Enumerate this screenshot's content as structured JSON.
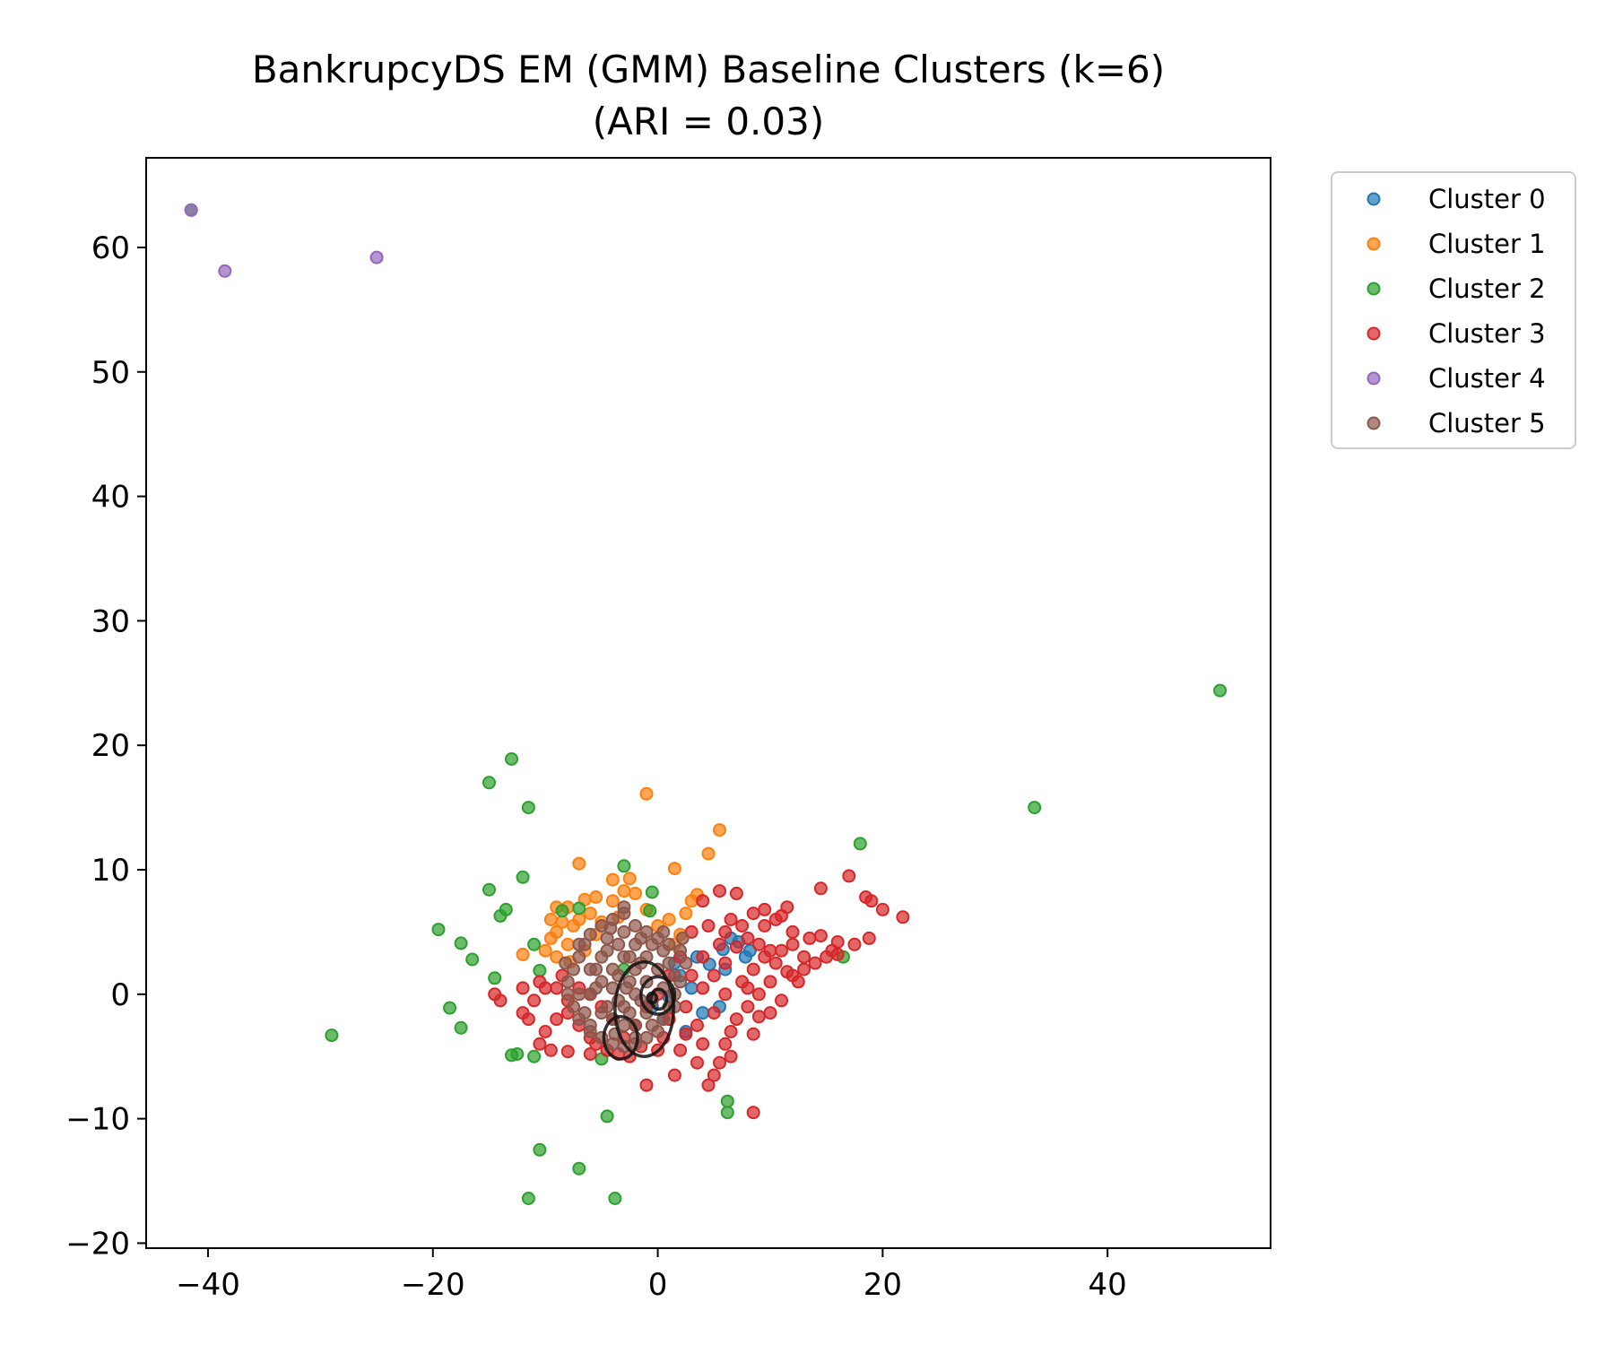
{
  "chart_data": {
    "type": "scatter",
    "title": "BankrupcyDS EM (GMM) Baseline Clusters (k=6)",
    "subtitle": "(ARI = 0.03)",
    "xlabel": "",
    "ylabel": "",
    "xlim": [
      -45.5,
      54.5
    ],
    "ylim": [
      -20.4,
      67.2
    ],
    "xticks": [
      -40,
      -20,
      0,
      20,
      40
    ],
    "yticks": [
      -20,
      -10,
      0,
      10,
      20,
      30,
      40,
      50,
      60
    ],
    "xtick_labels": [
      "−40",
      "−20",
      "0",
      "20",
      "40"
    ],
    "ytick_labels": [
      "−20",
      "−10",
      "0",
      "10",
      "20",
      "30",
      "40",
      "50",
      "60"
    ],
    "grid": false,
    "legend_position": "outside-upper-right",
    "series": [
      {
        "name": "Cluster 0",
        "color": "#1f77b4",
        "points": [
          [
            6.5,
            4.5
          ],
          [
            7.2,
            4.2
          ],
          [
            5.8,
            3.6
          ],
          [
            7.8,
            3.0
          ],
          [
            4.6,
            2.4
          ],
          [
            2.0,
            1.5
          ],
          [
            1.0,
            -0.2
          ],
          [
            3.0,
            0.5
          ],
          [
            6.0,
            2.0
          ],
          [
            4.0,
            -1.5
          ],
          [
            2.5,
            -3.0
          ],
          [
            0.5,
            -2.0
          ],
          [
            5.5,
            -1.0
          ],
          [
            3.5,
            3.0
          ],
          [
            8.2,
            3.5
          ],
          [
            1.5,
            2.5
          ],
          [
            -0.5,
            -1.0
          ]
        ]
      },
      {
        "name": "Cluster 1",
        "color": "#ff7f0e",
        "points": [
          [
            -1.0,
            16.1
          ],
          [
            5.5,
            13.2
          ],
          [
            4.5,
            11.3
          ],
          [
            1.5,
            10.1
          ],
          [
            -7.0,
            10.5
          ],
          [
            -6.5,
            7.6
          ],
          [
            -5.5,
            7.8
          ],
          [
            -4.0,
            7.5
          ],
          [
            -3.0,
            8.3
          ],
          [
            -2.0,
            8.1
          ],
          [
            -2.5,
            9.3
          ],
          [
            -4.0,
            9.2
          ],
          [
            -8.0,
            7.0
          ],
          [
            -9.0,
            7.0
          ],
          [
            -9.5,
            6.0
          ],
          [
            -9.0,
            5.0
          ],
          [
            -9.5,
            4.5
          ],
          [
            -10.0,
            3.5
          ],
          [
            -9.0,
            3.0
          ],
          [
            -12.0,
            3.2
          ],
          [
            -8.0,
            4.0
          ],
          [
            -7.5,
            5.5
          ],
          [
            -7.0,
            6.0
          ],
          [
            -6.0,
            6.5
          ],
          [
            -5.0,
            5.8
          ],
          [
            -6.5,
            3.5
          ],
          [
            3.0,
            7.5
          ],
          [
            3.5,
            8.0
          ],
          [
            2.5,
            6.5
          ],
          [
            1.0,
            6.0
          ],
          [
            0.0,
            5.5
          ],
          [
            2.0,
            4.8
          ],
          [
            -1.0,
            6.8
          ],
          [
            -3.5,
            6.2
          ],
          [
            -8.5,
            5.8
          ],
          [
            -7.8,
            2.6
          ],
          [
            1.5,
            4.0
          ],
          [
            -5.5,
            4.8
          ]
        ]
      },
      {
        "name": "Cluster 2",
        "color": "#2ca02c",
        "points": [
          [
            -41.5,
            63.0
          ],
          [
            50.0,
            24.4
          ],
          [
            33.5,
            15.0
          ],
          [
            18.0,
            12.1
          ],
          [
            16.5,
            3.0
          ],
          [
            -13.0,
            18.9
          ],
          [
            -15.0,
            17.0
          ],
          [
            -11.5,
            15.0
          ],
          [
            -12.0,
            9.4
          ],
          [
            -15.0,
            8.4
          ],
          [
            -13.5,
            6.8
          ],
          [
            -14.0,
            6.3
          ],
          [
            -3.0,
            10.3
          ],
          [
            -0.5,
            8.2
          ],
          [
            -8.5,
            6.7
          ],
          [
            -7.0,
            6.9
          ],
          [
            -19.5,
            5.2
          ],
          [
            -17.5,
            4.1
          ],
          [
            -16.5,
            2.8
          ],
          [
            -11.0,
            4.0
          ],
          [
            -10.5,
            1.9
          ],
          [
            -14.5,
            1.3
          ],
          [
            -18.5,
            -1.1
          ],
          [
            -17.5,
            -2.7
          ],
          [
            -29.0,
            -3.3
          ],
          [
            -12.5,
            -4.8
          ],
          [
            -11.0,
            -5.0
          ],
          [
            -13.0,
            -4.9
          ],
          [
            6.2,
            -8.6
          ],
          [
            6.2,
            -9.5
          ],
          [
            -4.5,
            -9.8
          ],
          [
            -10.5,
            -12.5
          ],
          [
            -7.0,
            -14.0
          ],
          [
            -11.5,
            -16.4
          ],
          [
            -3.8,
            -16.4
          ],
          [
            -5.0,
            -5.2
          ],
          [
            -0.7,
            6.7
          ],
          [
            -3.0,
            2.0
          ]
        ]
      },
      {
        "name": "Cluster 3",
        "color": "#d62728",
        "points": [
          [
            21.8,
            6.2
          ],
          [
            20.0,
            6.8
          ],
          [
            19.0,
            7.5
          ],
          [
            18.5,
            7.8
          ],
          [
            17.0,
            9.5
          ],
          [
            14.5,
            8.5
          ],
          [
            7.0,
            8.1
          ],
          [
            5.5,
            8.3
          ],
          [
            4.0,
            7.5
          ],
          [
            6.5,
            6.0
          ],
          [
            8.5,
            6.5
          ],
          [
            9.5,
            6.8
          ],
          [
            10.5,
            6.0
          ],
          [
            11.5,
            7.0
          ],
          [
            11.0,
            6.3
          ],
          [
            12.0,
            5.0
          ],
          [
            13.5,
            4.5
          ],
          [
            14.5,
            4.7
          ],
          [
            15.5,
            3.5
          ],
          [
            16.0,
            4.2
          ],
          [
            17.5,
            4.0
          ],
          [
            18.8,
            4.5
          ],
          [
            15.0,
            3.0
          ],
          [
            16.0,
            3.2
          ],
          [
            13.0,
            2.0
          ],
          [
            12.0,
            1.5
          ],
          [
            10.0,
            1.0
          ],
          [
            9.0,
            0.0
          ],
          [
            8.0,
            -1.0
          ],
          [
            7.0,
            -2.0
          ],
          [
            6.5,
            -3.0
          ],
          [
            6.0,
            -4.0
          ],
          [
            6.5,
            -5.0
          ],
          [
            5.5,
            -5.5
          ],
          [
            5.0,
            -6.5
          ],
          [
            4.5,
            -7.3
          ],
          [
            3.5,
            -5.5
          ],
          [
            1.5,
            -6.5
          ],
          [
            -1.0,
            -7.3
          ],
          [
            -2.5,
            -5.0
          ],
          [
            -4.5,
            -4.5
          ],
          [
            -6.0,
            -4.8
          ],
          [
            -8.0,
            -4.6
          ],
          [
            -9.5,
            -4.5
          ],
          [
            -10.5,
            -4.0
          ],
          [
            -11.5,
            -2.0
          ],
          [
            -12.0,
            -1.5
          ],
          [
            -10.0,
            -3.0
          ],
          [
            -9.0,
            -2.0
          ],
          [
            -8.0,
            -1.5
          ],
          [
            -7.0,
            -2.5
          ],
          [
            -6.0,
            -3.5
          ],
          [
            -14.5,
            0.0
          ],
          [
            -14.0,
            -0.5
          ],
          [
            -10.5,
            1.0
          ],
          [
            -11.0,
            -0.5
          ],
          [
            -12.0,
            0.5
          ],
          [
            -10.0,
            0.5
          ],
          [
            -8.5,
            1.5
          ],
          [
            8.5,
            -3.2
          ],
          [
            8.5,
            -9.5
          ],
          [
            4.0,
            -4.0
          ],
          [
            2.0,
            -4.5
          ],
          [
            0.0,
            -4.5
          ],
          [
            1.0,
            -2.0
          ],
          [
            2.5,
            -1.0
          ],
          [
            4.0,
            0.5
          ],
          [
            5.0,
            1.5
          ],
          [
            6.0,
            2.5
          ],
          [
            7.5,
            1.0
          ],
          [
            8.5,
            2.0
          ],
          [
            9.5,
            3.0
          ],
          [
            10.5,
            2.5
          ],
          [
            11.5,
            1.8
          ],
          [
            12.5,
            1.0
          ],
          [
            11.0,
            -0.5
          ],
          [
            10.0,
            -1.5
          ],
          [
            9.0,
            -1.8
          ],
          [
            8.0,
            0.5
          ],
          [
            6.0,
            0.0
          ],
          [
            5.0,
            -1.5
          ],
          [
            3.5,
            -2.5
          ],
          [
            3.0,
            1.5
          ],
          [
            4.0,
            3.0
          ],
          [
            5.5,
            4.0
          ],
          [
            7.0,
            3.8
          ],
          [
            8.0,
            4.5
          ],
          [
            9.0,
            4.0
          ],
          [
            10.0,
            3.5
          ],
          [
            3.0,
            5.0
          ],
          [
            2.0,
            3.0
          ],
          [
            1.0,
            1.5
          ],
          [
            0.0,
            0.0
          ],
          [
            -1.0,
            -1.0
          ],
          [
            -2.0,
            -2.5
          ],
          [
            -3.0,
            -3.5
          ],
          [
            -4.0,
            -2.0
          ],
          [
            -5.0,
            -1.0
          ],
          [
            -6.0,
            0.0
          ],
          [
            -7.0,
            0.5
          ],
          [
            -8.0,
            -0.5
          ],
          [
            -9.0,
            0.5
          ],
          [
            -5.5,
            -4.0
          ],
          [
            -3.5,
            -4.8
          ],
          [
            -1.5,
            -4.2
          ],
          [
            0.5,
            -3.5
          ],
          [
            2.5,
            -3.2
          ],
          [
            12.0,
            4.0
          ],
          [
            13.0,
            3.0
          ],
          [
            14.0,
            2.5
          ],
          [
            11.0,
            3.5
          ],
          [
            9.5,
            5.5
          ],
          [
            7.5,
            5.5
          ],
          [
            6.0,
            5.0
          ],
          [
            4.5,
            5.5
          ]
        ]
      },
      {
        "name": "Cluster 4",
        "color": "#9467bd",
        "points": [
          [
            -41.5,
            63.0
          ],
          [
            -38.5,
            58.1
          ],
          [
            -25.0,
            59.2
          ]
        ]
      },
      {
        "name": "Cluster 5",
        "color": "#8c564b",
        "points": [
          [
            -3.0,
            6.5
          ],
          [
            -2.0,
            5.5
          ],
          [
            -1.0,
            5.0
          ],
          [
            0.0,
            4.5
          ],
          [
            1.0,
            4.0
          ],
          [
            2.0,
            3.5
          ],
          [
            2.5,
            2.5
          ],
          [
            2.0,
            1.0
          ],
          [
            1.5,
            0.0
          ],
          [
            1.0,
            -1.0
          ],
          [
            0.5,
            -2.0
          ],
          [
            0.0,
            -3.0
          ],
          [
            -1.0,
            -3.5
          ],
          [
            -2.0,
            -4.0
          ],
          [
            -3.0,
            -4.2
          ],
          [
            -4.0,
            -4.0
          ],
          [
            -5.0,
            -3.5
          ],
          [
            -6.0,
            -3.0
          ],
          [
            -7.0,
            -2.0
          ],
          [
            -7.5,
            -1.0
          ],
          [
            -8.0,
            0.0
          ],
          [
            -8.0,
            1.0
          ],
          [
            -7.5,
            2.0
          ],
          [
            -7.0,
            3.0
          ],
          [
            -6.5,
            4.0
          ],
          [
            -6.0,
            4.8
          ],
          [
            -5.0,
            5.5
          ],
          [
            -4.0,
            6.0
          ],
          [
            -3.0,
            5.0
          ],
          [
            -2.0,
            4.0
          ],
          [
            -1.0,
            3.0
          ],
          [
            0.0,
            2.0
          ],
          [
            1.0,
            2.5
          ],
          [
            -1.0,
            1.0
          ],
          [
            -2.0,
            0.0
          ],
          [
            -3.0,
            -1.0
          ],
          [
            -4.0,
            -2.0
          ],
          [
            -5.0,
            -1.5
          ],
          [
            -6.0,
            0.0
          ],
          [
            -5.0,
            1.0
          ],
          [
            -4.0,
            2.0
          ],
          [
            -3.0,
            3.0
          ],
          [
            -2.0,
            2.0
          ],
          [
            -1.0,
            -1.5
          ],
          [
            -2.0,
            -2.5
          ],
          [
            -3.0,
            -2.5
          ],
          [
            -4.0,
            0.5
          ],
          [
            -5.0,
            3.0
          ],
          [
            -6.0,
            2.0
          ],
          [
            -7.0,
            0.0
          ],
          [
            -6.5,
            -1.5
          ],
          [
            -4.5,
            4.5
          ],
          [
            -3.5,
            1.5
          ],
          [
            -2.5,
            1.0
          ],
          [
            -1.5,
            2.5
          ],
          [
            0.5,
            3.5
          ],
          [
            1.5,
            1.5
          ],
          [
            0.5,
            0.5
          ],
          [
            -0.5,
            -0.5
          ],
          [
            -1.5,
            -0.5
          ],
          [
            -2.5,
            -1.5
          ],
          [
            -3.5,
            -0.5
          ],
          [
            -4.5,
            -1.0
          ],
          [
            -5.5,
            0.5
          ],
          [
            -5.5,
            2.0
          ],
          [
            -4.5,
            3.5
          ],
          [
            -3.5,
            4.0
          ],
          [
            -2.5,
            3.0
          ],
          [
            -1.5,
            4.5
          ],
          [
            -0.5,
            4.0
          ],
          [
            0.5,
            5.0
          ],
          [
            -3.0,
            7.0
          ],
          [
            -6.0,
            -2.5
          ],
          [
            -2.0,
            -3.5
          ],
          [
            -0.5,
            -2.5
          ],
          [
            1.5,
            -1.0
          ],
          [
            2.2,
            4.5
          ],
          [
            -7.0,
            4.0
          ],
          [
            -8.2,
            2.5
          ],
          [
            -4.2,
            5.3
          ],
          [
            -3.8,
            -3.2
          ],
          [
            -2.8,
            0.5
          ]
        ]
      }
    ],
    "ellipses": [
      {
        "cx": -1.2,
        "cy": -1.2,
        "rx": 2.6,
        "ry": 3.8
      },
      {
        "cx": -3.3,
        "cy": -3.5,
        "rx": 1.5,
        "ry": 1.7
      },
      {
        "cx": 0.0,
        "cy": -0.1,
        "rx": 1.5,
        "ry": 1.5
      },
      {
        "cx": 0.1,
        "cy": -0.4,
        "rx": 0.7,
        "ry": 0.8
      },
      {
        "cx": -0.5,
        "cy": -0.3,
        "rx": 0.4,
        "ry": 0.4
      }
    ]
  }
}
